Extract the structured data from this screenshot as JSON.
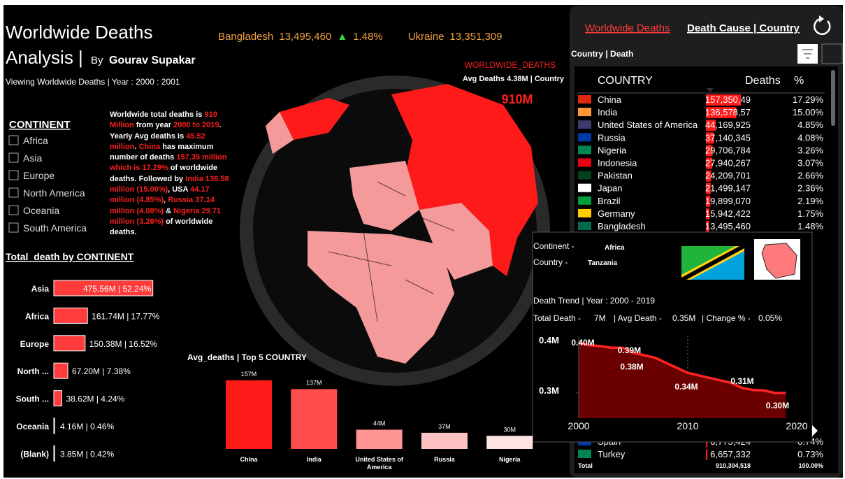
{
  "header": {
    "title_line1": "Worldwide Deaths",
    "title_line2": "Analysis |",
    "by": "By",
    "author": "Gourav Supakar",
    "viewing": "Viewing Worldwide Deaths | Year : 2000 : 2001"
  },
  "ticker": [
    {
      "name": "Bangladesh",
      "value": "13,495,460",
      "arrow": "▲",
      "change": "1.48%"
    },
    {
      "name": "Ukraine",
      "value": "13,351,309"
    }
  ],
  "kpi": {
    "label": "WORLDWIDE_DEATHS",
    "sub": "Avg Deaths 4.38M | Country",
    "value": "910M"
  },
  "filter": {
    "title": "CONTINENT",
    "options": [
      "Africa",
      "Asia",
      "Europe",
      "North America",
      "Oceania",
      "South America"
    ]
  },
  "narrative": [
    {
      "text": "Worldwide total deaths is ",
      "hl": false
    },
    {
      "text": "910 Million",
      "hl": true
    },
    {
      "text": " from year ",
      "hl": false
    },
    {
      "text": "2000 to 2019",
      "hl": true
    },
    {
      "text": ". Yearly Avg deaths is ",
      "hl": false
    },
    {
      "text": "45.52 million",
      "hl": true
    },
    {
      "text": ". ",
      "hl": false
    },
    {
      "text": "China",
      "hl": true
    },
    {
      "text": " has maximum number of deaths ",
      "hl": false
    },
    {
      "text": "157.35 million which is 17.29%",
      "hl": true
    },
    {
      "text": " of worldwide deaths. Followed by ",
      "hl": false
    },
    {
      "text": "India 136.58 million (15.00%)",
      "hl": true
    },
    {
      "text": ", USA ",
      "hl": false
    },
    {
      "text": "44.17 million (4.85%)",
      "hl": true
    },
    {
      "text": ", ",
      "hl": false
    },
    {
      "text": "Russia 37.14 million (4.08%)",
      "hl": true
    },
    {
      "text": " & ",
      "hl": false
    },
    {
      "text": "Nigeria 29.71 million (3.26%)",
      "hl": true
    },
    {
      "text": " of worldwide deaths.",
      "hl": false
    }
  ],
  "chart_data": [
    {
      "type": "hbar",
      "title": "Total_death by CONTINENT",
      "color": "#ff3b3b",
      "categories": [
        "Asia",
        "Africa",
        "Europe",
        "North ...",
        "South ...",
        "Oceania",
        "(Blank)"
      ],
      "values": [
        475.56,
        161.74,
        150.38,
        67.2,
        38.62,
        4.16,
        3.85
      ],
      "value_labels": [
        "475.56M | 52.24%",
        "161.74M | 17.77%",
        "150.38M | 16.52%",
        "67.20M | 7.38%",
        "38.62M | 4.24%",
        "4.16M | 0.46%",
        "3.85M | 0.42%"
      ],
      "xlim": [
        0,
        480
      ]
    },
    {
      "type": "bar",
      "title": "Avg_deaths | Top 5 COUNTRY",
      "categories": [
        "China",
        "India",
        "United States of America",
        "Russia",
        "Nigeria"
      ],
      "values": [
        157,
        137,
        44,
        37,
        30
      ],
      "value_labels": [
        "157M",
        "137M",
        "44M",
        "37M",
        "30M"
      ],
      "colors": [
        "#ff1a1a",
        "#ff4d4d",
        "#ff9494",
        "#ffc2c2",
        "#ffe2e2"
      ],
      "ylim": [
        0,
        160
      ]
    },
    {
      "type": "line",
      "title": "Death Trend | Year : 2000 - 2019",
      "color": "#ff2424",
      "fill": "#6a0000",
      "x": [
        2000,
        2001,
        2002,
        2003,
        2004,
        2005,
        2006,
        2007,
        2008,
        2009,
        2010,
        2011,
        2012,
        2013,
        2014,
        2015,
        2016,
        2017,
        2018,
        2019
      ],
      "values": [
        0.4,
        0.395,
        0.393,
        0.39,
        0.39,
        0.38,
        0.375,
        0.37,
        0.36,
        0.35,
        0.34,
        0.335,
        0.33,
        0.325,
        0.32,
        0.31,
        0.306,
        0.305,
        0.3,
        0.3
      ],
      "value_labels": [
        "0.40M",
        null,
        null,
        null,
        "0.39M",
        "0.38M",
        null,
        null,
        null,
        null,
        "0.34M",
        null,
        null,
        null,
        null,
        "0.31M",
        null,
        null,
        null,
        "0.30M"
      ],
      "xlim": [
        2000,
        2020
      ],
      "xticks": [
        2000,
        2010,
        2020
      ],
      "ylim": [
        0.25,
        0.4
      ],
      "yticks": [
        {
          "value": 0.4,
          "label": "0.4M"
        },
        {
          "value": 0.3,
          "label": "0.3M"
        }
      ]
    }
  ],
  "panel": {
    "tabs": [
      "Worldwide Deaths",
      "Death Cause | Country"
    ],
    "subtitle": "Country | Death",
    "headers": [
      "COUNTRY",
      "Deaths",
      "%"
    ],
    "rows": [
      [
        "China",
        "157,350,49",
        "17.29%"
      ],
      [
        "India",
        "136,578,57",
        "15.00%"
      ],
      [
        "United States of America",
        "44,169,925",
        "4.85%"
      ],
      [
        "Russia",
        "37,140,345",
        "4.08%"
      ],
      [
        "Nigeria",
        "29,706,784",
        "3.26%"
      ],
      [
        "Indonesia",
        "27,940,267",
        "3.07%"
      ],
      [
        "Pakistan",
        "24,209,701",
        "2.66%"
      ],
      [
        "Japan",
        "21,499,147",
        "2.36%"
      ],
      [
        "Brazil",
        "19,899,070",
        "2.19%"
      ],
      [
        "Germany",
        "15,942,422",
        "1.75%"
      ],
      [
        "Bangladesh",
        "13,495,460",
        "1.48%"
      ]
    ],
    "bottom_rows": [
      [
        "Spain",
        "6,775,424",
        "0.74%"
      ],
      [
        "Turkey",
        "6,657,332",
        "0.73%"
      ]
    ],
    "total": [
      "Total",
      "910,304,518",
      "100.00%"
    ]
  },
  "tooltip": {
    "continent_label": "Continent -",
    "continent": "Africa",
    "country_label": "Country -",
    "country": "Tanzania",
    "summary": [
      "Total Death -",
      "7M",
      "| Avg Death -",
      "0.35M",
      "| Change % -",
      "0.05%"
    ]
  }
}
